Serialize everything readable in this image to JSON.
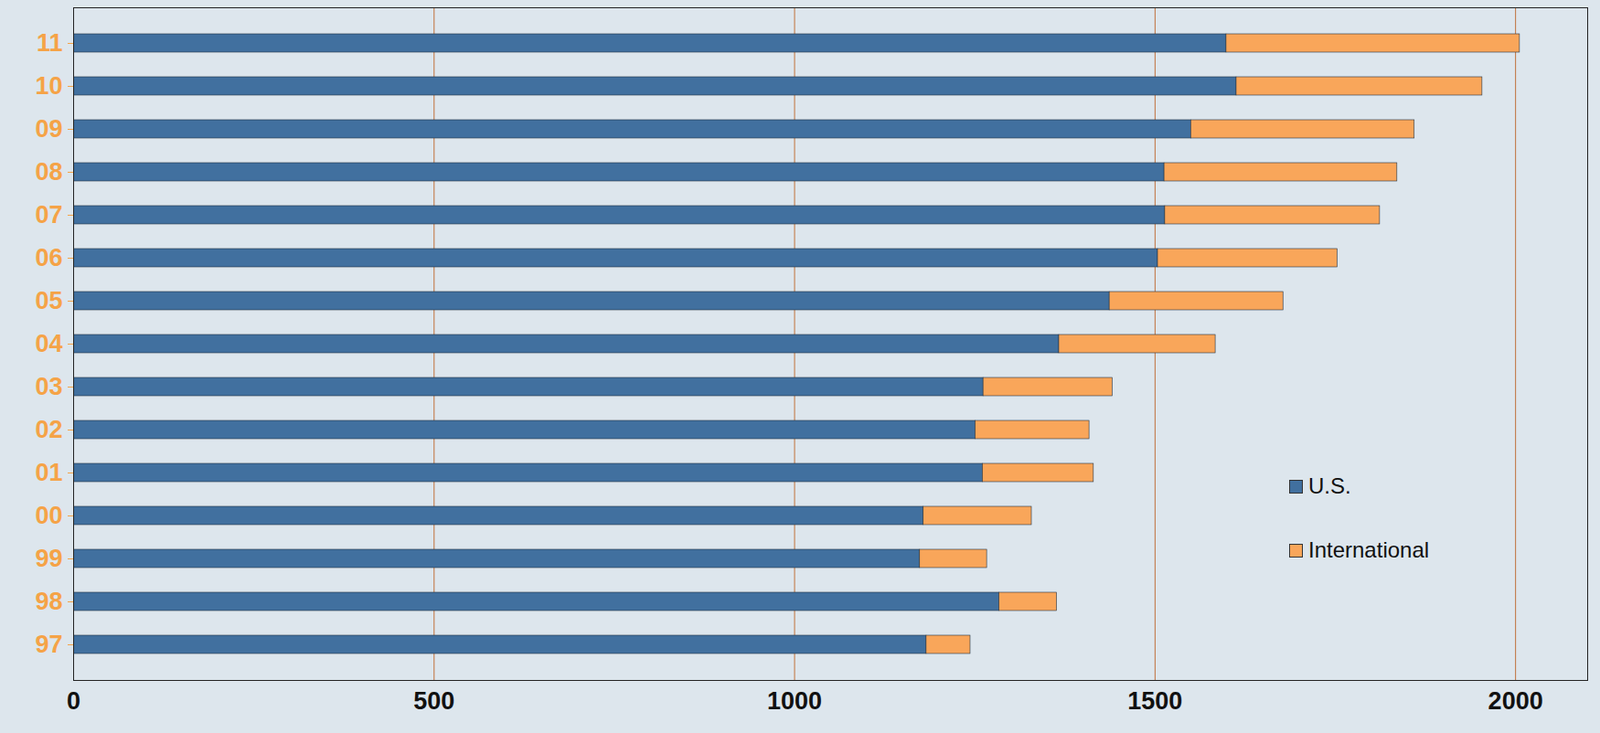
{
  "chart_data": {
    "type": "bar",
    "orientation": "horizontal",
    "stacked": true,
    "grid": true,
    "legend": "right",
    "categories": [
      "97",
      "98",
      "99",
      "00",
      "01",
      "02",
      "03",
      "04",
      "05",
      "06",
      "07",
      "08",
      "09",
      "10",
      "11"
    ],
    "series": [
      {
        "name": "U.S.",
        "color": "#41709f",
        "values": [
          1183,
          1284,
          1174,
          1179,
          1261,
          1251,
          1262,
          1367,
          1437,
          1504,
          1514,
          1513,
          1550,
          1613,
          1599
        ]
      },
      {
        "name": "International",
        "color": "#f9a65a",
        "values": [
          61,
          80,
          93,
          150,
          154,
          158,
          179,
          217,
          241,
          249,
          298,
          323,
          310,
          341,
          407
        ]
      }
    ],
    "xlim": [
      0,
      2100
    ],
    "xticks": [
      0,
      500,
      1000,
      1500,
      2000
    ]
  }
}
